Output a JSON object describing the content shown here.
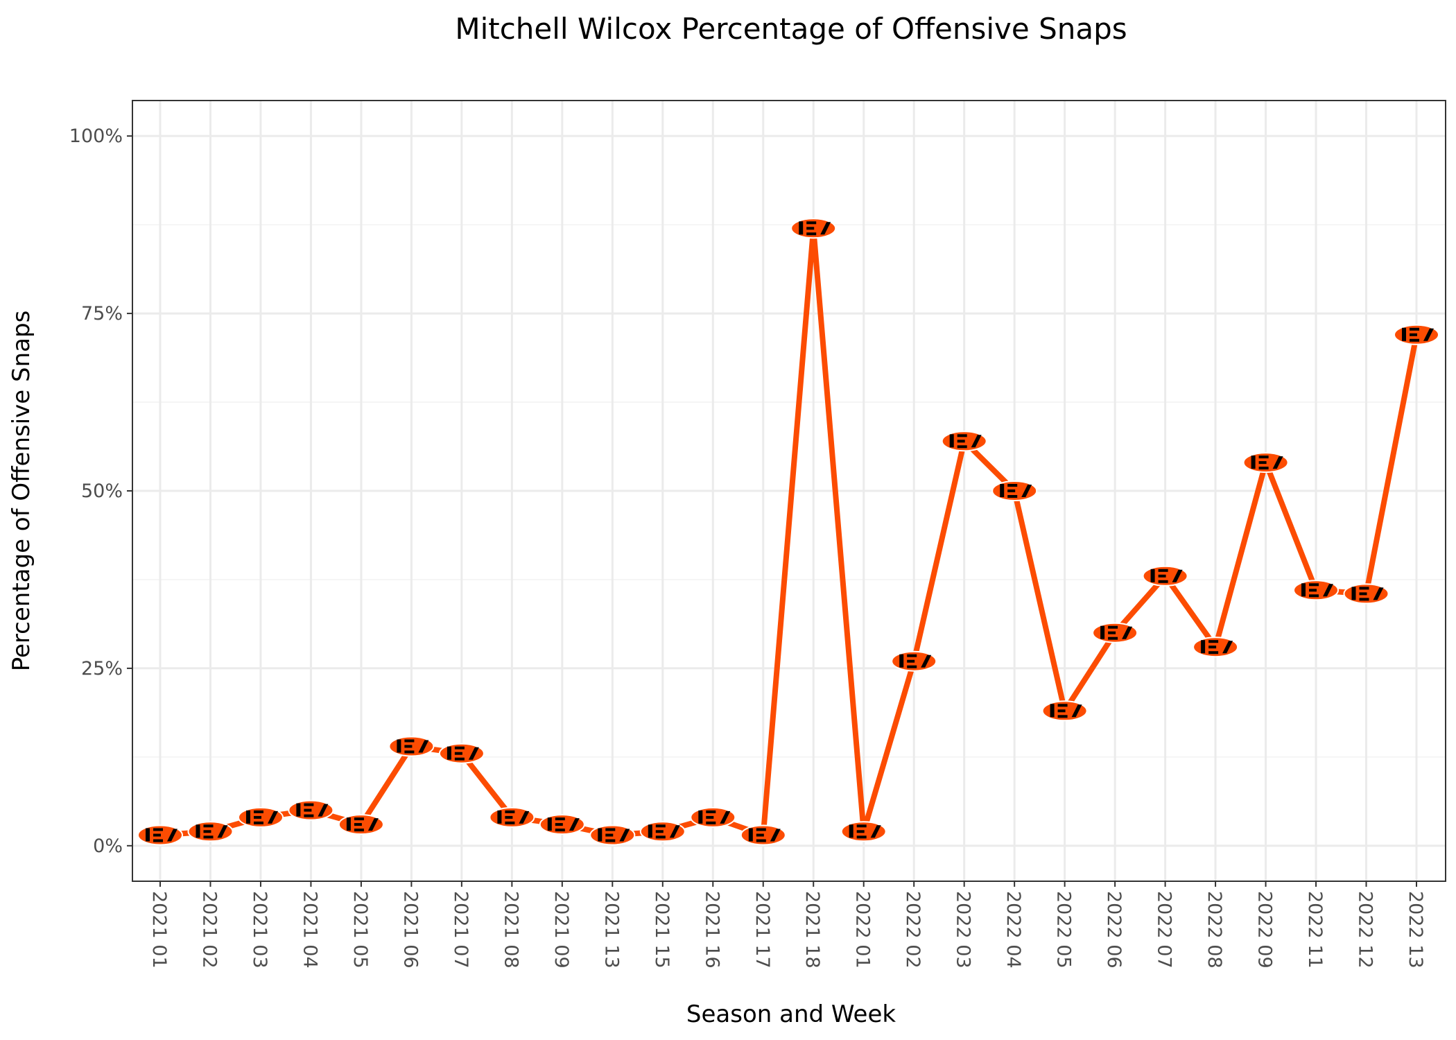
{
  "chart_data": {
    "type": "line",
    "title": "Mitchell Wilcox Percentage of Offensive Snaps",
    "xlabel": "Season and Week",
    "ylabel": "Percentage of Offensive Snaps",
    "categories": [
      "2021 01",
      "2021 02",
      "2021 03",
      "2021 04",
      "2021 05",
      "2021 06",
      "2021 07",
      "2021 08",
      "2021 09",
      "2021 13",
      "2021 15",
      "2021 16",
      "2021 17",
      "2021 18",
      "2022 01",
      "2022 02",
      "2022 03",
      "2022 04",
      "2022 05",
      "2022 06",
      "2022 07",
      "2022 08",
      "2022 09",
      "2022 11",
      "2022 12",
      "2022 13"
    ],
    "values": [
      1.5,
      2,
      4,
      5,
      3,
      14,
      13,
      4,
      3,
      1.5,
      2,
      4,
      1.5,
      87,
      2,
      26,
      57,
      50,
      19,
      30,
      38,
      28,
      54,
      36,
      35.5,
      72
    ],
    "ylim": [
      -5,
      105
    ],
    "yticks": [
      0,
      25,
      50,
      75,
      100
    ],
    "ytick_labels": [
      "0%",
      "25%",
      "50%",
      "75%",
      "100%"
    ],
    "grid": true,
    "line_color": "#fc4c02",
    "marker_icon": "bengals-logo-icon",
    "marker_colors": {
      "fill": "#fc4c02",
      "stripe": "#000000"
    }
  }
}
